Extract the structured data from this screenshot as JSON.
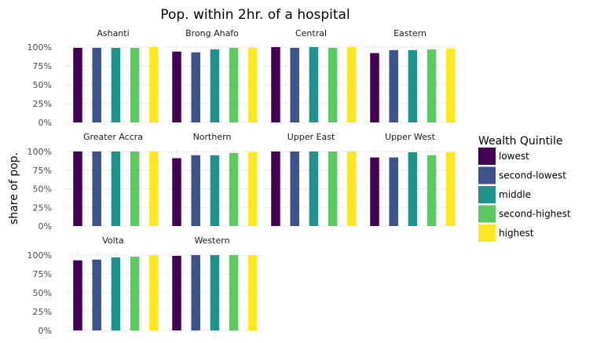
{
  "chart_data": {
    "type": "bar",
    "title": "Pop. within 2hr. of a hospital",
    "xlabel": "",
    "ylabel": "share of pop.",
    "ylim": [
      0,
      1
    ],
    "y_ticks": [
      "0%",
      "25%",
      "50%",
      "75%",
      "100%"
    ],
    "grid": true,
    "legend": {
      "title": "Wealth Quintile",
      "placement": "right",
      "entries": [
        {
          "name": "lowest",
          "color": "#440154"
        },
        {
          "name": "second-lowest",
          "color": "#3b528b"
        },
        {
          "name": "middle",
          "color": "#21918c"
        },
        {
          "name": "second-highest",
          "color": "#5ec962"
        },
        {
          "name": "highest",
          "color": "#fde725"
        }
      ]
    },
    "categories": [
      "lowest",
      "second-lowest",
      "middle",
      "second-highest",
      "highest"
    ],
    "facets": [
      {
        "name": "Ashanti",
        "values": [
          0.99,
          0.99,
          0.99,
          0.99,
          1.0
        ]
      },
      {
        "name": "Brong Ahafo",
        "values": [
          0.94,
          0.93,
          0.97,
          0.99,
          0.99
        ]
      },
      {
        "name": "Central",
        "values": [
          1.0,
          0.99,
          1.0,
          0.99,
          1.0
        ]
      },
      {
        "name": "Eastern",
        "values": [
          0.92,
          0.96,
          0.96,
          0.97,
          0.98
        ]
      },
      {
        "name": "Greater Accra",
        "values": [
          1.0,
          1.0,
          1.0,
          1.0,
          1.0
        ]
      },
      {
        "name": "Northern",
        "values": [
          0.91,
          0.95,
          0.95,
          0.98,
          0.99
        ]
      },
      {
        "name": "Upper East",
        "values": [
          1.0,
          1.0,
          1.0,
          1.0,
          1.0
        ]
      },
      {
        "name": "Upper West",
        "values": [
          0.92,
          0.92,
          0.99,
          0.95,
          0.99
        ]
      },
      {
        "name": "Volta",
        "values": [
          0.93,
          0.94,
          0.97,
          0.98,
          1.0
        ]
      },
      {
        "name": "Western",
        "values": [
          0.99,
          1.0,
          1.0,
          1.0,
          1.0
        ]
      }
    ]
  }
}
